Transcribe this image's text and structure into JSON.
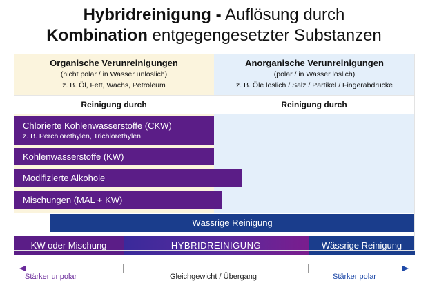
{
  "title": {
    "line1_bold": "Hybridreinigung -",
    "line1_rest": "Auflösung durch",
    "line2_bold": "Kombination",
    "line2_rest": "entgegengesetzter Substanzen"
  },
  "columns": {
    "organic": {
      "heading": "Organische Verunreinigungen",
      "property": "(nicht polar / in Wasser unlöslich)",
      "examples": "z. B. Öl, Fett, Wachs, Petroleum",
      "cleaning_label": "Reinigung durch"
    },
    "inorganic": {
      "heading": "Anorganische Verunreinigungen",
      "property": "(polar / in Wasser löslich)",
      "examples": "z. B. Öle löslich / Salz / Partikel / Fingerabdrücke",
      "cleaning_label": "Reinigung durch"
    }
  },
  "solvents": [
    {
      "label": "Chlorierte Kohlenwasserstoffe (CKW)",
      "sub": "z. B. Perchlorethylen, Trichlorethylen"
    },
    {
      "label": "Kohlenwasserstoffe (KW)"
    },
    {
      "label": "Modifizierte Alkohole"
    },
    {
      "label": "Mischungen (MAL + KW)"
    }
  ],
  "aqueous_bar": "Wässrige Reinigung",
  "hybrid_row": {
    "left": "KW oder Mischung",
    "middle": "HYBRIDREINIGUNG",
    "right": "Wässrige Reinigung"
  },
  "axis": {
    "left": "Stärker unpolar",
    "center": "Gleichgewicht / Übergang",
    "right": "Stärker polar"
  },
  "colors": {
    "purple": "#5b1d87",
    "navy": "#1a3d8c",
    "organic_bg": "#fbf4dd",
    "inorganic_bg": "#e4effa",
    "axis_purple": "#6a2a9a",
    "axis_blue": "#1f4aa8"
  }
}
